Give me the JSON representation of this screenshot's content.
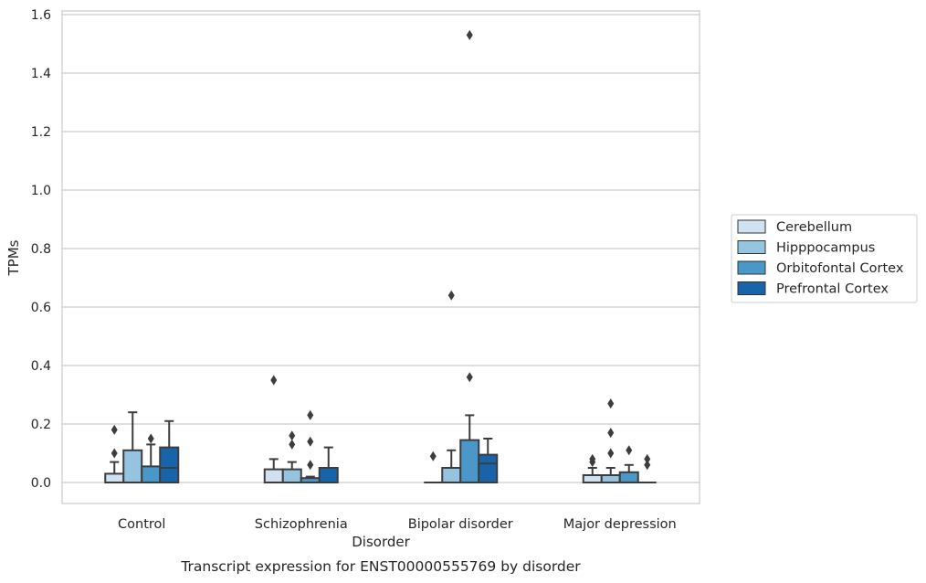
{
  "chart_data": {
    "type": "box",
    "title": "Transcript expression for ENST00000555769 by disorder",
    "xlabel": "Disorder",
    "ylabel": "TPMs",
    "ylim": [
      -0.07,
      1.61
    ],
    "yticks": [
      "0.0",
      "0.2",
      "0.4",
      "0.6",
      "0.8",
      "1.0",
      "1.2",
      "1.4",
      "1.6"
    ],
    "grid": true,
    "legend_position": "right",
    "categories": [
      "Control",
      "Schizophrenia",
      "Bipolar disorder",
      "Major depression"
    ],
    "series": [
      {
        "name": "Cerebellum",
        "color": "#d0e1f2",
        "boxes": [
          {
            "q1": 0.0,
            "median": 0.0,
            "q3": 0.03,
            "whisker_low": 0.0,
            "whisker_high": 0.07,
            "outliers": [
              0.1,
              0.18
            ]
          },
          {
            "q1": 0.0,
            "median": 0.0,
            "q3": 0.045,
            "whisker_low": 0.0,
            "whisker_high": 0.08,
            "outliers": [
              0.35
            ]
          },
          {
            "q1": 0.0,
            "median": 0.0,
            "q3": 0.0,
            "whisker_low": 0.0,
            "whisker_high": 0.0,
            "outliers": [
              0.09
            ]
          },
          {
            "q1": 0.0,
            "median": 0.0,
            "q3": 0.025,
            "whisker_low": 0.0,
            "whisker_high": 0.05,
            "outliers": [
              0.07,
              0.08
            ]
          }
        ]
      },
      {
        "name": "Hipppocampus",
        "color": "#94c4df",
        "boxes": [
          {
            "q1": 0.0,
            "median": 0.0,
            "q3": 0.11,
            "whisker_low": 0.0,
            "whisker_high": 0.24,
            "outliers": []
          },
          {
            "q1": 0.0,
            "median": 0.0,
            "q3": 0.045,
            "whisker_low": 0.0,
            "whisker_high": 0.07,
            "outliers": [
              0.13,
              0.16
            ]
          },
          {
            "q1": 0.0,
            "median": 0.0,
            "q3": 0.05,
            "whisker_low": 0.0,
            "whisker_high": 0.11,
            "outliers": [
              0.64
            ]
          },
          {
            "q1": 0.0,
            "median": 0.0,
            "q3": 0.025,
            "whisker_low": 0.0,
            "whisker_high": 0.05,
            "outliers": [
              0.1,
              0.17,
              0.27
            ]
          }
        ]
      },
      {
        "name": "Orbitofontal Cortex",
        "color": "#4a98c9",
        "boxes": [
          {
            "q1": 0.0,
            "median": 0.0,
            "q3": 0.055,
            "whisker_low": 0.0,
            "whisker_high": 0.13,
            "outliers": [
              0.15
            ]
          },
          {
            "q1": 0.0,
            "median": 0.0,
            "q3": 0.015,
            "whisker_low": 0.0,
            "whisker_high": 0.02,
            "outliers": [
              0.06,
              0.14,
              0.23
            ]
          },
          {
            "q1": 0.0,
            "median": 0.0,
            "q3": 0.145,
            "whisker_low": 0.0,
            "whisker_high": 0.23,
            "outliers": [
              0.36,
              1.53
            ]
          },
          {
            "q1": 0.0,
            "median": 0.0,
            "q3": 0.035,
            "whisker_low": 0.0,
            "whisker_high": 0.06,
            "outliers": [
              0.11
            ]
          }
        ]
      },
      {
        "name": "Prefrontal Cortex",
        "color": "#1764ab",
        "boxes": [
          {
            "q1": 0.0,
            "median": 0.05,
            "q3": 0.12,
            "whisker_low": 0.0,
            "whisker_high": 0.21,
            "outliers": []
          },
          {
            "q1": 0.0,
            "median": 0.0,
            "q3": 0.05,
            "whisker_low": 0.0,
            "whisker_high": 0.12,
            "outliers": []
          },
          {
            "q1": 0.0,
            "median": 0.065,
            "q3": 0.095,
            "whisker_low": 0.0,
            "whisker_high": 0.15,
            "outliers": []
          },
          {
            "q1": 0.0,
            "median": 0.0,
            "q3": 0.0,
            "whisker_low": 0.0,
            "whisker_high": 0.0,
            "outliers": [
              0.06,
              0.08
            ]
          }
        ]
      }
    ]
  }
}
